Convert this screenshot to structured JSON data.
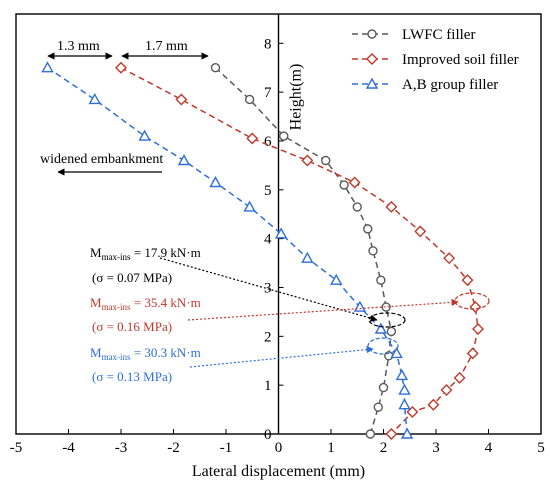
{
  "chart_data": {
    "type": "line",
    "xlabel": "Lateral displacement (mm)",
    "ylabel": "Height(m)",
    "xlim": [
      -5,
      5
    ],
    "ylim": [
      0,
      8.6
    ],
    "xticks": [
      -5,
      -4,
      -3,
      -2,
      -1,
      0,
      1,
      2,
      3,
      4,
      5
    ],
    "yticks": [
      0,
      1,
      2,
      3,
      4,
      5,
      6,
      7,
      8
    ],
    "legend_position": "top-right",
    "series": [
      {
        "name": "LWFC filler",
        "color": "#595959",
        "marker": "circle",
        "x": [
          -1.2,
          -0.55,
          0.1,
          0.9,
          1.25,
          1.5,
          1.7,
          1.8,
          1.95,
          2.05,
          2.15,
          2.1,
          2.0,
          1.9,
          1.75
        ],
        "y": [
          7.5,
          6.85,
          6.1,
          5.6,
          5.1,
          4.65,
          4.2,
          3.75,
          3.15,
          2.6,
          2.1,
          1.6,
          0.95,
          0.55,
          0.0
        ]
      },
      {
        "name": "Improved soil filler",
        "color": "#C0392B",
        "marker": "diamond",
        "x": [
          -3.0,
          -1.85,
          -0.5,
          0.55,
          1.45,
          2.15,
          2.7,
          3.25,
          3.6,
          3.75,
          3.8,
          3.7,
          3.45,
          3.2,
          2.95,
          2.55,
          2.15
        ],
        "y": [
          7.5,
          6.85,
          6.05,
          5.6,
          5.15,
          4.65,
          4.15,
          3.6,
          3.15,
          2.6,
          2.15,
          1.65,
          1.15,
          0.9,
          0.6,
          0.45,
          0.0
        ]
      },
      {
        "name": "A,B group filler",
        "color": "#2E6FD8",
        "marker": "triangle",
        "x": [
          -4.4,
          -3.5,
          -2.55,
          -1.8,
          -1.2,
          -0.55,
          0.05,
          0.55,
          1.1,
          1.55,
          1.95,
          2.25,
          2.35,
          2.4,
          2.4,
          2.45
        ],
        "y": [
          7.5,
          6.85,
          6.1,
          5.6,
          5.15,
          4.65,
          4.1,
          3.6,
          3.15,
          2.6,
          2.15,
          1.65,
          1.2,
          0.9,
          0.6,
          0.0
        ]
      }
    ],
    "annotations": {
      "dim_left": "1.3 mm",
      "dim_right": "1.7 mm",
      "direction_label": "widened embankment",
      "moment_black_main": "M",
      "moment_black_sub": "max-ins",
      "moment_black_value": " = 17.9 kN·m",
      "stress_black": "(σ = 0.07 MPa)",
      "moment_red_main": "M",
      "moment_red_sub": "max-ins",
      "moment_red_value": " = 35.4 kN·m",
      "stress_red": "(σ = 0.16 MPa)",
      "moment_blue_main": "M",
      "moment_blue_sub": "max-ins",
      "moment_blue_value": " = 30.3 kN·m",
      "stress_blue": "(σ = 0.13 MPa)"
    }
  }
}
